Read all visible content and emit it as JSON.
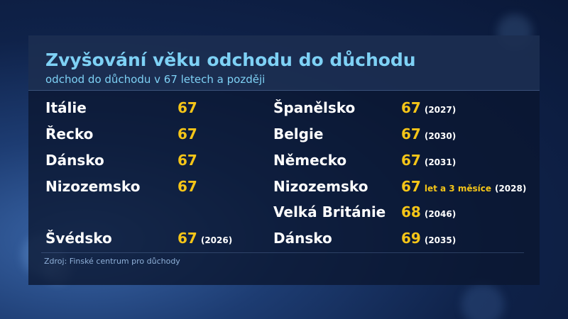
{
  "title": "Zvyšování věku odchodu do důchodu",
  "subtitle": "odchod do důchodu v 67 letech a později",
  "left_column": [
    {
      "country": "Itálie",
      "age": "67",
      "extra": "",
      "year": ""
    },
    {
      "country": "Řecko",
      "age": "67",
      "extra": "",
      "year": ""
    },
    {
      "country": "Dánsko",
      "age": "67",
      "extra": "",
      "year": ""
    },
    {
      "country": "Nizozemsko",
      "age": "67",
      "extra": "",
      "year": ""
    },
    {
      "country": "Švédsko",
      "age": "67",
      "extra": "",
      "year": "(2026)"
    }
  ],
  "right_column": [
    {
      "country": "Španělsko",
      "age": "67",
      "extra": "",
      "year": "(2027)"
    },
    {
      "country": "Belgie",
      "age": "67",
      "extra": "",
      "year": "(2030)"
    },
    {
      "country": "Německo",
      "age": "67",
      "extra": "",
      "year": "(2031)"
    },
    {
      "country": "Nizozemsko",
      "age": "67",
      "extra": "let a 3 měsíce",
      "year": "(2028)"
    },
    {
      "country": "Velká Británie",
      "age": "68",
      "extra": "",
      "year": "(2046)"
    },
    {
      "country": "Dánsko",
      "age": "69",
      "extra": "",
      "year": "(2035)"
    }
  ],
  "source": "Zdroj: Finské centrum pro důchody",
  "colors": {
    "title": "#7ed1f5",
    "age": "#f5c518",
    "country": "#ffffff"
  }
}
